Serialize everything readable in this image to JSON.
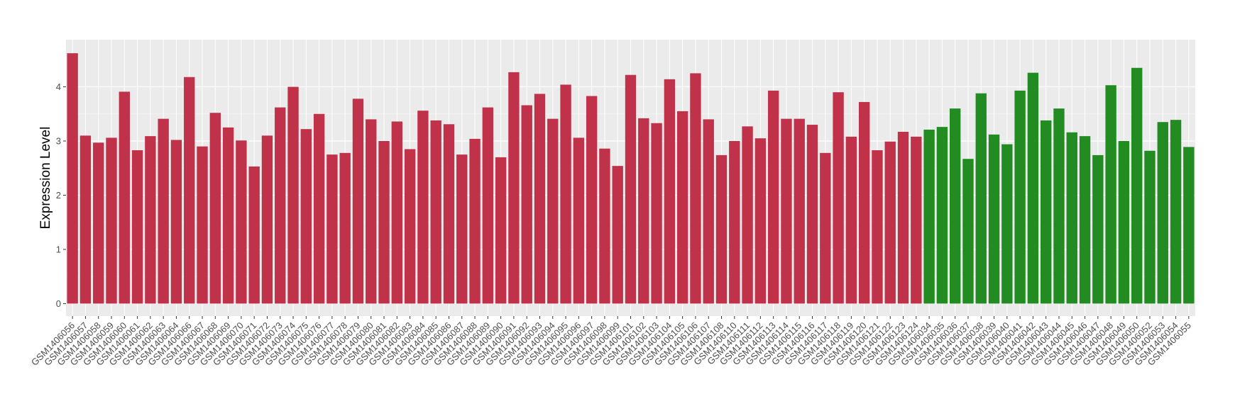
{
  "chart_data": {
    "type": "bar",
    "y_label": "Expression Level",
    "categories": [
      "GSM1406056",
      "GSM1406057",
      "GSM1406058",
      "GSM1406059",
      "GSM1406060",
      "GSM1406061",
      "GSM1406062",
      "GSM1406063",
      "GSM1406064",
      "GSM1406066",
      "GSM1406067",
      "GSM1406068",
      "GSM1406069",
      "GSM1406070",
      "GSM1406071",
      "GSM1406072",
      "GSM1406073",
      "GSM1406074",
      "GSM1406075",
      "GSM1406076",
      "GSM1406077",
      "GSM1406078",
      "GSM1406079",
      "GSM1406080",
      "GSM1406081",
      "GSM1406082",
      "GSM1406083",
      "GSM1406084",
      "GSM1406085",
      "GSM1406086",
      "GSM1406087",
      "GSM1406088",
      "GSM1406089",
      "GSM1406090",
      "GSM1406091",
      "GSM1406092",
      "GSM1406093",
      "GSM1406094",
      "GSM1406095",
      "GSM1406096",
      "GSM1406097",
      "GSM1406098",
      "GSM1406099",
      "GSM1406101",
      "GSM1406102",
      "GSM1406103",
      "GSM1406104",
      "GSM1406105",
      "GSM1406106",
      "GSM1406107",
      "GSM1406108",
      "GSM1406110",
      "GSM1406111",
      "GSM1406112",
      "GSM1406113",
      "GSM1406114",
      "GSM1406115",
      "GSM1406116",
      "GSM1406117",
      "GSM1406118",
      "GSM1406119",
      "GSM1406120",
      "GSM1406121",
      "GSM1406122",
      "GSM1406123",
      "GSM1406124",
      "GSM1406034",
      "GSM1406035",
      "GSM1406036",
      "GSM1406037",
      "GSM1406038",
      "GSM1406039",
      "GSM1406040",
      "GSM1406041",
      "GSM1406042",
      "GSM1406043",
      "GSM1406044",
      "GSM1406045",
      "GSM1406046",
      "GSM1406047",
      "GSM1406048",
      "GSM1406049",
      "GSM1406050",
      "GSM1406052",
      "GSM1406053",
      "GSM1406054",
      "GSM1406055"
    ],
    "series": [
      {
        "color": "#c0314a",
        "values": [
          4.62,
          3.1,
          2.97,
          3.06,
          3.91,
          2.83,
          3.09,
          3.41,
          3.02,
          4.18,
          2.9,
          3.52,
          3.25,
          3.01,
          2.53,
          3.1,
          3.62,
          4.0,
          3.22,
          3.5,
          2.75,
          2.78,
          3.78,
          3.4,
          3.0,
          3.36,
          2.85,
          3.56,
          3.38,
          3.31,
          2.75,
          3.04,
          3.62,
          2.7,
          4.27,
          3.66,
          3.87,
          3.41,
          4.04,
          3.06,
          3.83,
          2.86,
          2.54,
          4.22,
          3.42,
          3.33,
          4.14,
          3.55,
          4.25,
          3.4,
          2.74,
          3.0,
          3.27,
          3.05,
          3.93,
          3.41,
          3.41,
          3.3,
          2.78,
          3.9,
          3.08,
          3.72,
          2.83,
          2.99,
          3.17,
          3.08,
          null,
          null,
          null,
          null,
          null,
          null,
          null,
          null,
          null,
          null,
          null,
          null,
          null,
          null,
          null,
          null,
          null,
          null,
          null,
          null,
          null
        ]
      },
      {
        "color": "#228b22",
        "values": [
          null,
          null,
          null,
          null,
          null,
          null,
          null,
          null,
          null,
          null,
          null,
          null,
          null,
          null,
          null,
          null,
          null,
          null,
          null,
          null,
          null,
          null,
          null,
          null,
          null,
          null,
          null,
          null,
          null,
          null,
          null,
          null,
          null,
          null,
          null,
          null,
          null,
          null,
          null,
          null,
          null,
          null,
          null,
          null,
          null,
          null,
          null,
          null,
          null,
          null,
          null,
          null,
          null,
          null,
          null,
          null,
          null,
          null,
          null,
          null,
          null,
          null,
          null,
          null,
          null,
          null,
          3.21,
          3.26,
          3.6,
          2.67,
          3.88,
          3.12,
          2.94,
          3.93,
          4.26,
          3.38,
          3.6,
          3.16,
          3.09,
          2.74,
          4.03,
          3.0,
          4.35,
          2.82,
          3.35,
          3.39,
          2.89
        ]
      }
    ],
    "ylim": [
      -0.23,
      4.87
    ],
    "yticks": [
      0,
      1,
      2,
      3,
      4
    ],
    "grid": true
  }
}
